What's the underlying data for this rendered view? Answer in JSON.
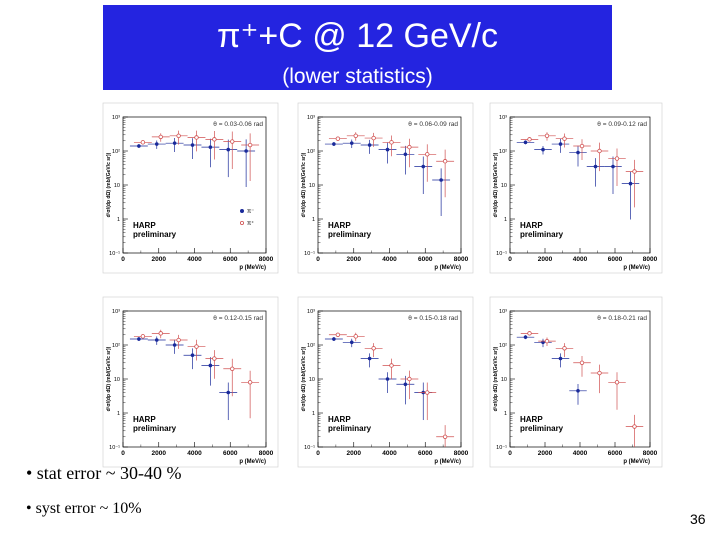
{
  "title": {
    "main": "π⁺+C @ 12 GeV/c",
    "sub": "(lower statistics)"
  },
  "bullets": [
    "• stat error ~ 30-40 %",
    "• syst error ~ 10%"
  ],
  "page_number": "36",
  "colors": {
    "title_bg": "#2424e0",
    "pi_minus": "#1a2a9a",
    "pi_plus": "#d05050"
  },
  "chart_data": [
    {
      "type": "scatter",
      "title": "θ = 0.03-0.06 rad",
      "xlabel": "p (MeV/c)",
      "ylabel": "d²σ/(dp dΩ) (mb/(GeV/c sr))",
      "xlim": [
        0,
        8000
      ],
      "ylim": [
        0.1,
        1000
      ],
      "yscale": "log",
      "xticks": [
        "0",
        "2000",
        "4000",
        "6000",
        "8000"
      ],
      "yticks": [
        "10⁻¹",
        "1",
        "10",
        "10²",
        "10³"
      ],
      "watermark": [
        "HARP",
        "preliminary"
      ],
      "legend": [
        "π⁻",
        "π⁺"
      ],
      "series": [
        {
          "name": "π⁻",
          "x": [
            1000,
            2000,
            3000,
            4000,
            5000,
            6000,
            7000
          ],
          "y": [
            140,
            160,
            170,
            150,
            130,
            110,
            100
          ]
        },
        {
          "name": "π⁺",
          "x": [
            1000,
            2000,
            3000,
            4000,
            5000,
            6000,
            7000
          ],
          "y": [
            180,
            260,
            280,
            250,
            220,
            190,
            150
          ]
        }
      ]
    },
    {
      "type": "scatter",
      "title": "θ = 0.06-0.09 rad",
      "xlabel": "p (MeV/c)",
      "ylabel": "d²σ/(dp dΩ) (mb/(GeV/c sr))",
      "xlim": [
        0,
        8000
      ],
      "ylim": [
        0.1,
        1000
      ],
      "yscale": "log",
      "xticks": [
        "0",
        "2000",
        "4000",
        "6000",
        "8000"
      ],
      "yticks": [
        "10⁻¹",
        "1",
        "10",
        "10²",
        "10³"
      ],
      "watermark": [
        "HARP",
        "preliminary"
      ],
      "series": [
        {
          "name": "π⁻",
          "x": [
            1000,
            2000,
            3000,
            4000,
            5000,
            6000,
            7000
          ],
          "y": [
            160,
            170,
            150,
            110,
            80,
            35,
            14
          ]
        },
        {
          "name": "π⁺",
          "x": [
            1000,
            2000,
            3000,
            4000,
            5000,
            6000,
            7000
          ],
          "y": [
            230,
            280,
            240,
            180,
            130,
            80,
            50
          ]
        }
      ]
    },
    {
      "type": "scatter",
      "title": "θ = 0.09-0.12 rad",
      "xlabel": "p (MeV/c)",
      "ylabel": "d²σ/(dp dΩ) (mb/(GeV/c sr))",
      "xlim": [
        0,
        8000
      ],
      "ylim": [
        0.1,
        1000
      ],
      "yscale": "log",
      "xticks": [
        "0",
        "2000",
        "4000",
        "6000",
        "8000"
      ],
      "yticks": [
        "10⁻¹",
        "1",
        "10",
        "10²",
        "10³"
      ],
      "watermark": [
        "HARP",
        "preliminary"
      ],
      "series": [
        {
          "name": "π⁻",
          "x": [
            1000,
            2000,
            3000,
            4000,
            5000,
            6000,
            7000
          ],
          "y": [
            180,
            110,
            160,
            90,
            35,
            35,
            11
          ]
        },
        {
          "name": "π⁺",
          "x": [
            1000,
            2000,
            3000,
            4000,
            5000,
            6000,
            7000
          ],
          "y": [
            220,
            280,
            230,
            140,
            100,
            60,
            25
          ]
        }
      ]
    },
    {
      "type": "scatter",
      "title": "θ = 0.12-0.15 rad",
      "xlabel": "p (MeV/c)",
      "ylabel": "d²σ/(dp dΩ) (mb/(GeV/c sr))",
      "xlim": [
        0,
        8000
      ],
      "ylim": [
        0.1,
        1000
      ],
      "yscale": "log",
      "xticks": [
        "0",
        "2000",
        "4000",
        "6000",
        "8000"
      ],
      "yticks": [
        "10⁻¹",
        "1",
        "10",
        "10²",
        "10³"
      ],
      "watermark": [
        "HARP",
        "preliminary"
      ],
      "series": [
        {
          "name": "π⁻",
          "x": [
            1000,
            2000,
            3000,
            4000,
            5000,
            6000
          ],
          "y": [
            150,
            140,
            100,
            50,
            25,
            4
          ]
        },
        {
          "name": "π⁺",
          "x": [
            1000,
            2000,
            3000,
            4000,
            5000,
            6000,
            7000
          ],
          "y": [
            180,
            220,
            140,
            90,
            40,
            20,
            8
          ]
        }
      ]
    },
    {
      "type": "scatter",
      "title": "θ = 0.15-0.18 rad",
      "xlabel": "p (MeV/c)",
      "ylabel": "d²σ/(dp dΩ) (mb/(GeV/c sr))",
      "xlim": [
        0,
        8000
      ],
      "ylim": [
        0.1,
        1000
      ],
      "yscale": "log",
      "xticks": [
        "0",
        "2000",
        "4000",
        "6000",
        "8000"
      ],
      "yticks": [
        "10⁻¹",
        "1",
        "10",
        "10²",
        "10³"
      ],
      "watermark": [
        "HARP",
        "preliminary"
      ],
      "series": [
        {
          "name": "π⁻",
          "x": [
            1000,
            2000,
            3000,
            4000,
            5000,
            6000
          ],
          "y": [
            150,
            120,
            40,
            10,
            7,
            4
          ]
        },
        {
          "name": "π⁺",
          "x": [
            1000,
            2000,
            3000,
            4000,
            5000,
            6000,
            7000
          ],
          "y": [
            200,
            180,
            80,
            25,
            10,
            4,
            0.2
          ]
        }
      ]
    },
    {
      "type": "scatter",
      "title": "θ = 0.18-0.21 rad",
      "xlabel": "p (MeV/c)",
      "ylabel": "d²σ/(dp dΩ) (mb/(GeV/c sr))",
      "xlim": [
        0,
        8000
      ],
      "ylim": [
        0.1,
        1000
      ],
      "yscale": "log",
      "xticks": [
        "0",
        "2000",
        "4000",
        "6000",
        "8000"
      ],
      "yticks": [
        "10⁻¹",
        "1",
        "10",
        "10²",
        "10³"
      ],
      "watermark": [
        "HARP",
        "preliminary"
      ],
      "series": [
        {
          "name": "π⁻",
          "x": [
            1000,
            2000,
            3000,
            4000
          ],
          "y": [
            170,
            120,
            40,
            4.5
          ]
        },
        {
          "name": "π⁺",
          "x": [
            1000,
            2000,
            3000,
            4000,
            5000,
            6000,
            7000
          ],
          "y": [
            220,
            130,
            80,
            30,
            15,
            8,
            0.4
          ]
        }
      ]
    }
  ]
}
